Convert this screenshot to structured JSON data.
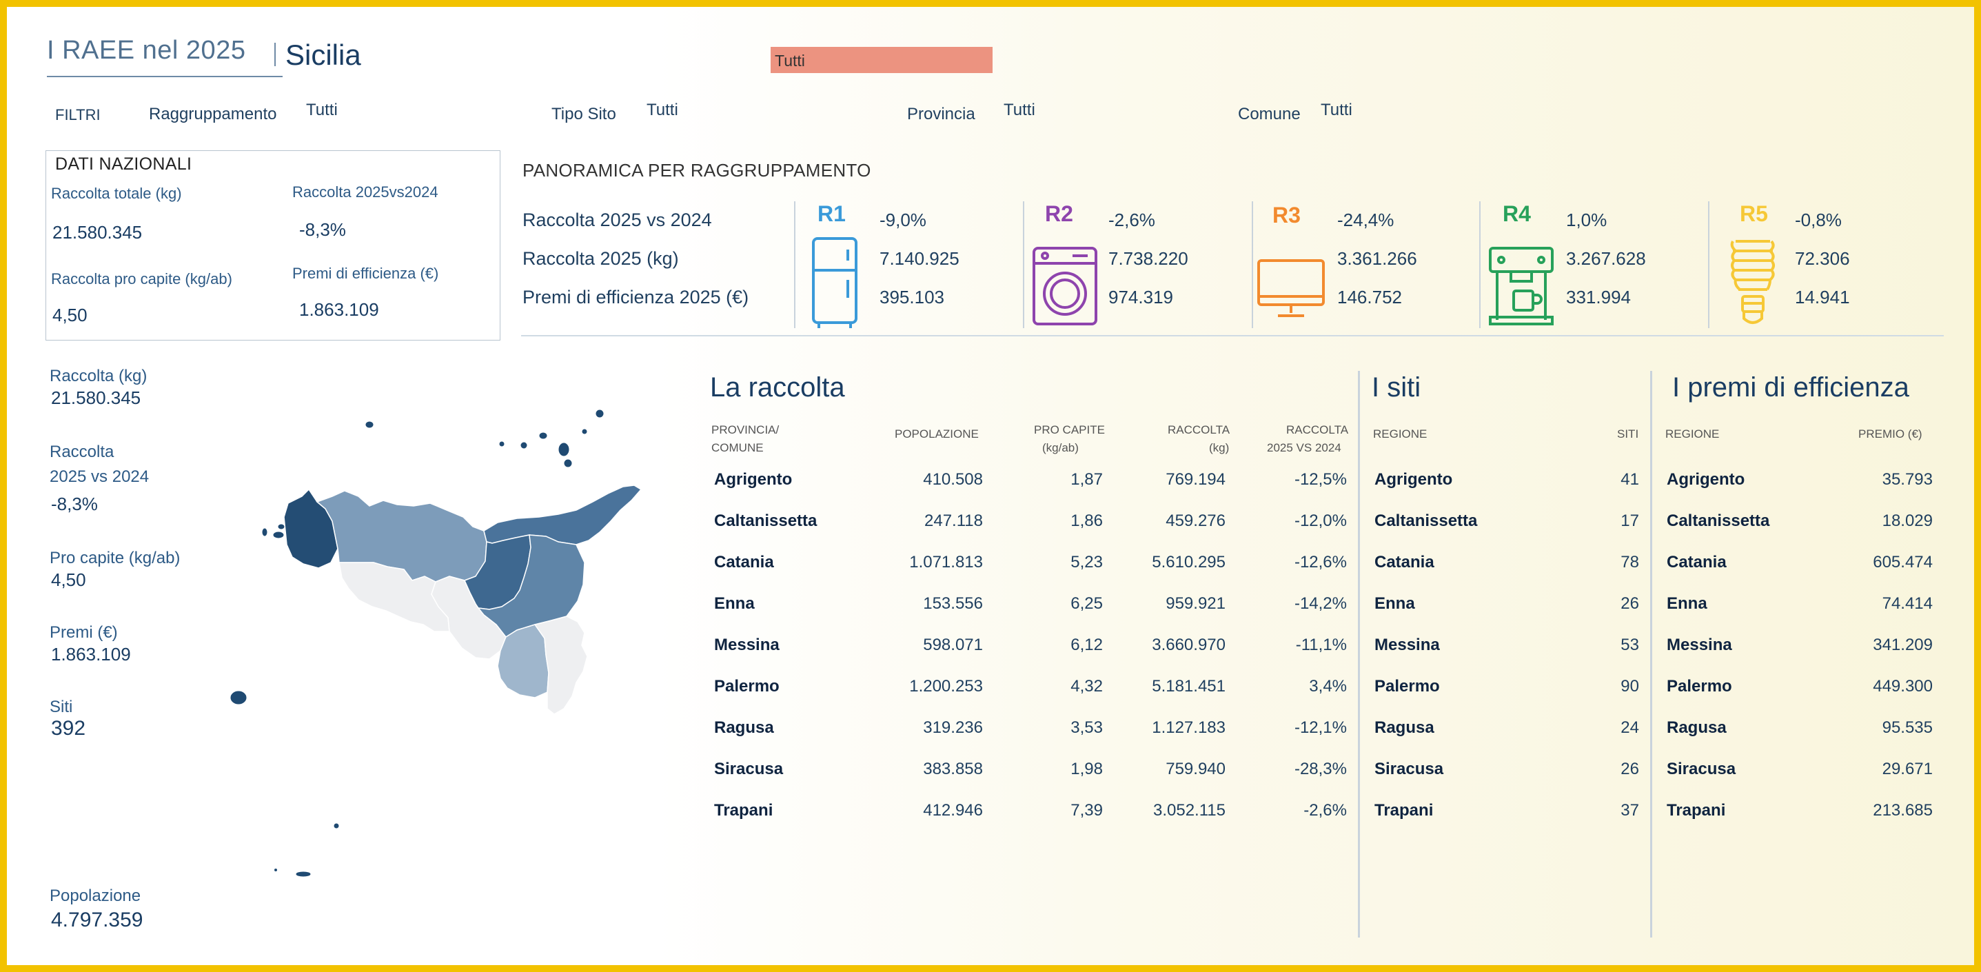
{
  "header": {
    "app_title": "I RAEE nel 2025",
    "region": "Sicilia",
    "top_filter_value": "Tutti"
  },
  "filters": {
    "title": "FILTRI",
    "items": [
      {
        "label": "Raggruppamento",
        "value": "Tutti"
      },
      {
        "label": "Tipo Sito",
        "value": "Tutti"
      },
      {
        "label": "Provincia",
        "value": "Tutti"
      },
      {
        "label": "Comune",
        "value": "Tutti"
      }
    ]
  },
  "dati_nazionali": {
    "title": "DATI NAZIONALI",
    "raccolta_totale_label": "Raccolta totale (kg)",
    "raccolta_totale_value": "21.580.345",
    "raccolta_vs_label": "Raccolta 2025vs2024",
    "raccolta_vs_value": "-8,3%",
    "pro_capite_label": "Raccolta pro capite (kg/ab)",
    "pro_capite_value": "4,50",
    "premi_label": "Premi di efficienza (€)",
    "premi_value": "1.863.109"
  },
  "panoramica": {
    "title": "PANORAMICA PER RAGGRUPPAMENTO",
    "row_labels": [
      "Raccolta 2025 vs 2024",
      "Raccolta 2025 (kg)",
      "Premi di efficienza 2025 (€)"
    ],
    "groups": [
      {
        "code": "R1",
        "color": "#3a9ad9",
        "icon": "fridge-icon",
        "values": [
          "-9,0%",
          "7.140.925",
          "395.103"
        ]
      },
      {
        "code": "R2",
        "color": "#8e44ad",
        "icon": "washing-machine-icon",
        "values": [
          "-2,6%",
          "7.738.220",
          "974.319"
        ]
      },
      {
        "code": "R3",
        "color": "#f28a2e",
        "icon": "monitor-icon",
        "values": [
          "-24,4%",
          "3.361.266",
          "146.752"
        ]
      },
      {
        "code": "R4",
        "color": "#27a15a",
        "icon": "coffee-machine-icon",
        "values": [
          "1,0%",
          "3.267.628",
          "331.994"
        ]
      },
      {
        "code": "R5",
        "color": "#f6c836",
        "icon": "light-bulb-icon",
        "values": [
          "-0,8%",
          "72.306",
          "14.941"
        ]
      }
    ]
  },
  "left_stats": {
    "raccolta_label": "Raccolta (kg)",
    "raccolta_value": "21.580.345",
    "raccolta_vs_label_1": "Raccolta",
    "raccolta_vs_label_2": "2025 vs 2024",
    "raccolta_vs_value": "-8,3%",
    "pro_capite_label": "Pro capite (kg/ab)",
    "pro_capite_value": "4,50",
    "premi_label": "Premi (€)",
    "premi_value": "1.863.109",
    "siti_label": "Siti",
    "siti_value": "392",
    "popolazione_label": "Popolazione",
    "popolazione_value": "4.797.359"
  },
  "raccolta": {
    "title": "La raccolta",
    "headers": {
      "provincia_1": "PROVINCIA/",
      "provincia_2": "COMUNE",
      "popolazione": "POPOLAZIONE",
      "pro_capite_1": "PRO CAPITE",
      "pro_capite_2": "(kg/ab)",
      "raccolta_1": "RACCOLTA",
      "raccolta_2": "(kg)",
      "vs_1": "RACCOLTA",
      "vs_2": "2025 VS 2024"
    },
    "rows": [
      {
        "name": "Agrigento",
        "pop": "410.508",
        "pc": "1,87",
        "kg": "769.194",
        "vs": "-12,5%"
      },
      {
        "name": "Caltanissetta",
        "pop": "247.118",
        "pc": "1,86",
        "kg": "459.276",
        "vs": "-12,0%"
      },
      {
        "name": "Catania",
        "pop": "1.071.813",
        "pc": "5,23",
        "kg": "5.610.295",
        "vs": "-12,6%"
      },
      {
        "name": "Enna",
        "pop": "153.556",
        "pc": "6,25",
        "kg": "959.921",
        "vs": "-14,2%"
      },
      {
        "name": "Messina",
        "pop": "598.071",
        "pc": "6,12",
        "kg": "3.660.970",
        "vs": "-11,1%"
      },
      {
        "name": "Palermo",
        "pop": "1.200.253",
        "pc": "4,32",
        "kg": "5.181.451",
        "vs": "3,4%"
      },
      {
        "name": "Ragusa",
        "pop": "319.236",
        "pc": "3,53",
        "kg": "1.127.183",
        "vs": "-12,1%"
      },
      {
        "name": "Siracusa",
        "pop": "383.858",
        "pc": "1,98",
        "kg": "759.940",
        "vs": "-28,3%"
      },
      {
        "name": "Trapani",
        "pop": "412.946",
        "pc": "7,39",
        "kg": "3.052.115",
        "vs": "-2,6%"
      }
    ]
  },
  "siti": {
    "title": "I siti",
    "headers": {
      "regione": "REGIONE",
      "siti": "SITI"
    },
    "rows": [
      {
        "name": "Agrigento",
        "value": "41"
      },
      {
        "name": "Caltanissetta",
        "value": "17"
      },
      {
        "name": "Catania",
        "value": "78"
      },
      {
        "name": "Enna",
        "value": "26"
      },
      {
        "name": "Messina",
        "value": "53"
      },
      {
        "name": "Palermo",
        "value": "90"
      },
      {
        "name": "Ragusa",
        "value": "24"
      },
      {
        "name": "Siracusa",
        "value": "26"
      },
      {
        "name": "Trapani",
        "value": "37"
      }
    ]
  },
  "premi": {
    "title": "I premi di efficienza",
    "headers": {
      "regione": "REGIONE",
      "premio": "PREMIO (€)"
    },
    "rows": [
      {
        "name": "Agrigento",
        "value": "35.793"
      },
      {
        "name": "Caltanissetta",
        "value": "18.029"
      },
      {
        "name": "Catania",
        "value": "605.474"
      },
      {
        "name": "Enna",
        "value": "74.414"
      },
      {
        "name": "Messina",
        "value": "341.209"
      },
      {
        "name": "Palermo",
        "value": "449.300"
      },
      {
        "name": "Ragusa",
        "value": "95.535"
      },
      {
        "name": "Siracusa",
        "value": "29.671"
      },
      {
        "name": "Trapani",
        "value": "213.685"
      }
    ]
  },
  "colors": {
    "frame": "#f2c200",
    "navy": "#1a3d63",
    "map_dark": "#244d74",
    "map_mid_dark": "#3e6890",
    "map_mid": "#5f85a8",
    "map_light": "#8fa9c2",
    "map_lighter": "#a9bdd0",
    "map_pale": "#eeeff1"
  }
}
